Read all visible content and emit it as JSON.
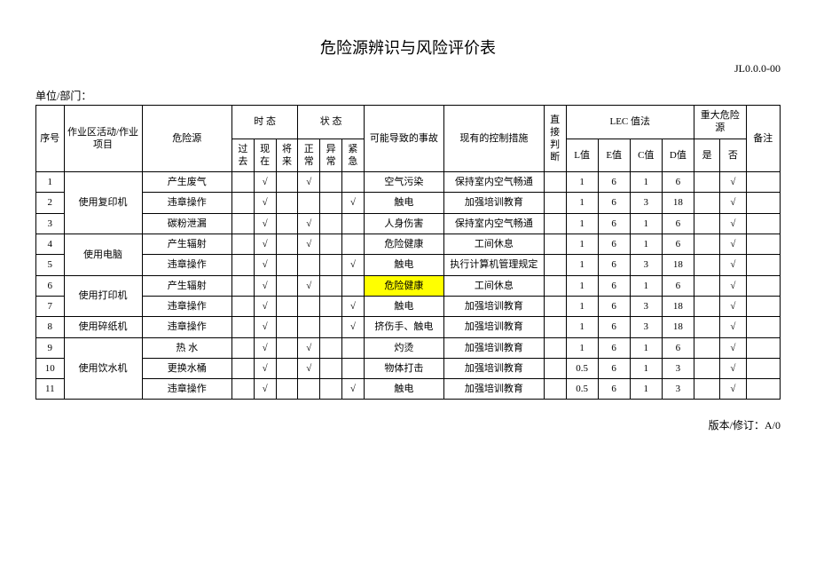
{
  "title": "危险源辨识与风险评价表",
  "doc_code": "JL0.0.0-00",
  "unit_label": "单位/部门：",
  "footer": "版本/修订：A/0",
  "headers": {
    "seq": "序号",
    "activity": "作业区活动/作业项目",
    "hazard": "危险源",
    "tense_group": "时 态",
    "tense_past": "过去",
    "tense_now": "现在",
    "tense_future": "将来",
    "state_group": "状 态",
    "state_normal": "正常",
    "state_abnormal": "异常",
    "state_emergency": "紧急",
    "accident": "可能导致的事故",
    "control": "现有的控制措施",
    "direct": "直接判断",
    "lec_group": "LEC 值法",
    "lec_l": "L值",
    "lec_e": "E值",
    "lec_c": "C值",
    "lec_d": "D值",
    "major_group": "重大危险源",
    "major_yes": "是",
    "major_no": "否",
    "remark": "备注"
  },
  "check": "√",
  "highlight_color": "#ffff00",
  "rows": [
    {
      "seq": "1",
      "activity": "使用复印机",
      "act_span": 3,
      "hazard": "产生废气",
      "past": "",
      "now": "√",
      "future": "",
      "normal": "√",
      "abnormal": "",
      "emergency": "",
      "accident": "空气污染",
      "control": "保持室内空气畅通",
      "direct": "",
      "l": "1",
      "e": "6",
      "c": "1",
      "d": "6",
      "yes": "",
      "no": "√",
      "remark": ""
    },
    {
      "seq": "2",
      "hazard": "违章操作",
      "past": "",
      "now": "√",
      "future": "",
      "normal": "",
      "abnormal": "",
      "emergency": "√",
      "accident": "触电",
      "control": "加强培训教育",
      "direct": "",
      "l": "1",
      "e": "6",
      "c": "3",
      "d": "18",
      "yes": "",
      "no": "√",
      "remark": ""
    },
    {
      "seq": "3",
      "hazard": "碳粉泄漏",
      "past": "",
      "now": "√",
      "future": "",
      "normal": "√",
      "abnormal": "",
      "emergency": "",
      "accident": "人身伤害",
      "control": "保持室内空气畅通",
      "direct": "",
      "l": "1",
      "e": "6",
      "c": "1",
      "d": "6",
      "yes": "",
      "no": "√",
      "remark": ""
    },
    {
      "seq": "4",
      "activity": "使用电脑",
      "act_span": 2,
      "hazard": "产生辐射",
      "past": "",
      "now": "√",
      "future": "",
      "normal": "√",
      "abnormal": "",
      "emergency": "",
      "accident": "危险健康",
      "control": "工间休息",
      "direct": "",
      "l": "1",
      "e": "6",
      "c": "1",
      "d": "6",
      "yes": "",
      "no": "√",
      "remark": ""
    },
    {
      "seq": "5",
      "hazard": "违章操作",
      "past": "",
      "now": "√",
      "future": "",
      "normal": "",
      "abnormal": "",
      "emergency": "√",
      "accident": "触电",
      "control": "执行计算机管理规定",
      "direct": "",
      "l": "1",
      "e": "6",
      "c": "3",
      "d": "18",
      "yes": "",
      "no": "√",
      "remark": ""
    },
    {
      "seq": "6",
      "activity": "使用打印机",
      "act_span": 2,
      "hazard": "产生辐射",
      "past": "",
      "now": "√",
      "future": "",
      "normal": "√",
      "abnormal": "",
      "emergency": "",
      "accident": "危险健康",
      "accident_hl": true,
      "control": "工间休息",
      "direct": "",
      "l": "1",
      "e": "6",
      "c": "1",
      "d": "6",
      "yes": "",
      "no": "√",
      "remark": ""
    },
    {
      "seq": "7",
      "hazard": "违章操作",
      "past": "",
      "now": "√",
      "future": "",
      "normal": "",
      "abnormal": "",
      "emergency": "√",
      "accident": "触电",
      "control": "加强培训教育",
      "direct": "",
      "l": "1",
      "e": "6",
      "c": "3",
      "d": "18",
      "yes": "",
      "no": "√",
      "remark": ""
    },
    {
      "seq": "8",
      "activity": "使用碎纸机",
      "act_span": 1,
      "hazard": "违章操作",
      "past": "",
      "now": "√",
      "future": "",
      "normal": "",
      "abnormal": "",
      "emergency": "√",
      "accident": "挤伤手、触电",
      "control": "加强培训教育",
      "direct": "",
      "l": "1",
      "e": "6",
      "c": "3",
      "d": "18",
      "yes": "",
      "no": "√",
      "remark": ""
    },
    {
      "seq": "9",
      "activity": "使用饮水机",
      "act_span": 3,
      "hazard": "热 水",
      "past": "",
      "now": "√",
      "future": "",
      "normal": "√",
      "abnormal": "",
      "emergency": "",
      "accident": "灼烫",
      "control": "加强培训教育",
      "direct": "",
      "l": "1",
      "e": "6",
      "c": "1",
      "d": "6",
      "yes": "",
      "no": "√",
      "remark": ""
    },
    {
      "seq": "10",
      "hazard": "更换水桶",
      "past": "",
      "now": "√",
      "future": "",
      "normal": "√",
      "abnormal": "",
      "emergency": "",
      "accident": "物体打击",
      "control": "加强培训教育",
      "direct": "",
      "l": "0.5",
      "e": "6",
      "c": "1",
      "d": "3",
      "yes": "",
      "no": "√",
      "remark": ""
    },
    {
      "seq": "11",
      "hazard": "违章操作",
      "past": "",
      "now": "√",
      "future": "",
      "normal": "",
      "abnormal": "",
      "emergency": "√",
      "accident": "触电",
      "control": "加强培训教育",
      "direct": "",
      "l": "0.5",
      "e": "6",
      "c": "1",
      "d": "3",
      "yes": "",
      "no": "√",
      "remark": ""
    }
  ]
}
